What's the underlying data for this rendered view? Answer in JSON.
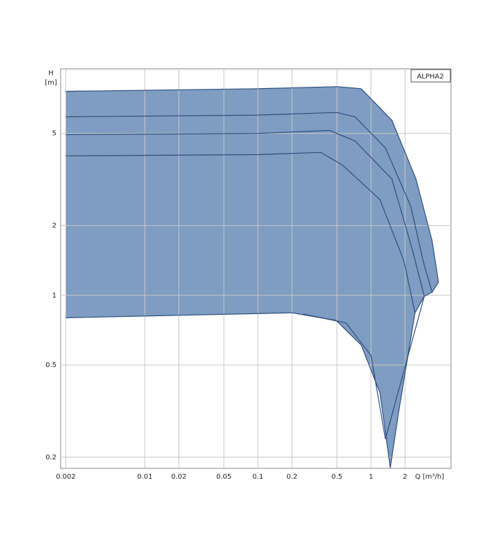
{
  "chart_data": {
    "type": "line",
    "y_label": "H",
    "y_unit": "[m]",
    "x_label": "Q [m³/h]",
    "box_label": "ALPHA2",
    "x_log": true,
    "y_log": true,
    "grid": true,
    "xlim": [
      0.0018,
      5.1
    ],
    "ylim": [
      0.179,
      9.5
    ],
    "xticks": [
      0.002,
      0.01,
      0.02,
      0.05,
      0.1,
      0.2,
      0.5,
      1,
      2
    ],
    "yticks": [
      0.2,
      0.5,
      1,
      2,
      5
    ],
    "line_color": "#2b4c7e",
    "fill_color": "#7f9dc2",
    "series": [
      {
        "x": [
          0.002,
          0.1,
          0.5,
          0.82,
          1.53,
          2.5,
          3.47,
          3.95,
          3.47
        ],
        "values": [
          7.6,
          7.8,
          7.96,
          7.8,
          5.7,
          3.18,
          1.72,
          1.14,
          1.03
        ]
      },
      {
        "x": [
          0.002,
          0.1,
          0.5,
          0.72,
          1.34,
          2.25,
          2.9,
          3.47
        ],
        "values": [
          5.9,
          6.0,
          6.16,
          5.9,
          4.33,
          2.42,
          1.4,
          1.03
        ]
      },
      {
        "x": [
          0.002,
          0.1,
          0.43,
          0.72,
          1.53,
          2.3,
          2.96
        ],
        "values": [
          4.94,
          5.0,
          5.15,
          4.64,
          3.18,
          1.6,
          0.99
        ]
      },
      {
        "x": [
          0.002,
          0.1,
          0.36,
          0.56,
          1.2,
          1.96,
          2.45
        ],
        "values": [
          4.0,
          4.05,
          4.14,
          3.65,
          2.59,
          1.4,
          0.84
        ]
      },
      {
        "x": [
          0.002,
          0.2,
          0.49,
          0.82,
          1.2,
          1.48
        ],
        "values": [
          0.8,
          0.84,
          0.78,
          0.61,
          0.38,
          0.18
        ]
      },
      {
        "x": [
          3.47,
          2.96,
          2.45,
          1.75,
          1.48
        ],
        "values": [
          1.03,
          0.99,
          0.84,
          0.31,
          0.18
        ]
      },
      {
        "x": [
          0.25,
          0.6,
          1.0,
          1.34,
          2.96
        ],
        "values": [
          0.83,
          0.76,
          0.55,
          0.24,
          0.99
        ]
      }
    ]
  }
}
